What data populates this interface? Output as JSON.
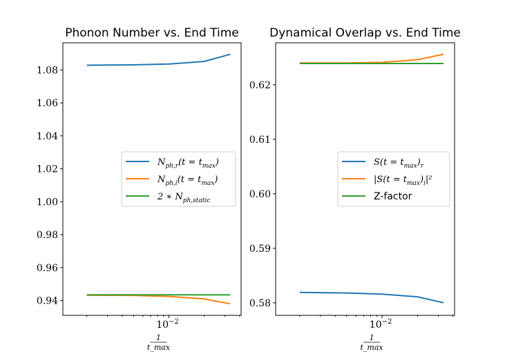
{
  "chart_data": [
    {
      "type": "line",
      "title": "Phonon Number vs. End Time",
      "xlabel": "1/t_max",
      "xlabel_num": "1",
      "xlabel_den": "t_max",
      "x_scale": "log",
      "xtick_label": "10^-2",
      "x": [
        0.002,
        0.005,
        0.01,
        0.02,
        0.0333
      ],
      "ylim": [
        0.931,
        1.0965
      ],
      "yticks": [
        "0.94",
        "0.96",
        "0.98",
        "1.00",
        "1.02",
        "1.04",
        "1.06",
        "1.08"
      ],
      "ytick_values": [
        0.94,
        0.96,
        0.98,
        1.0,
        1.02,
        1.04,
        1.06,
        1.08
      ],
      "legend_position": "center right",
      "series": [
        {
          "name": "N_{ph,r}(t = t_max)",
          "color": "#1f77b4",
          "values": [
            1.0829,
            1.0831,
            1.0836,
            1.0852,
            1.0895
          ]
        },
        {
          "name": "N_{ph,i}(t = t_max)",
          "color": "#ff7f0e",
          "values": [
            0.9432,
            0.9431,
            0.9425,
            0.941,
            0.938
          ]
        },
        {
          "name": "2 * N_{ph,static}",
          "color": "#2ca02c",
          "values": [
            0.9435,
            0.9435,
            0.9435,
            0.9435,
            0.9435
          ]
        }
      ],
      "legend": [
        {
          "main": "N",
          "sub": "ph,r",
          "rest": "(t = t",
          "sub2": "max",
          "end": ")"
        },
        {
          "main": "N",
          "sub": "ph,i",
          "rest": "(t = t",
          "sub2": "max",
          "end": ")"
        },
        {
          "main": "2 ∗ N",
          "sub": "ph,static",
          "rest": "",
          "sub2": "",
          "end": ""
        }
      ]
    },
    {
      "type": "line",
      "title": "Dynamical Overlap vs. End Time",
      "xlabel": "1/t_max",
      "xlabel_num": "1",
      "xlabel_den": "t_max",
      "x_scale": "log",
      "xtick_label": "10^-2",
      "x": [
        0.002,
        0.005,
        0.01,
        0.02,
        0.0333
      ],
      "ylim": [
        0.5777,
        0.6277
      ],
      "yticks": [
        "0.58",
        "0.59",
        "0.60",
        "0.61",
        "0.62"
      ],
      "ytick_values": [
        0.58,
        0.59,
        0.6,
        0.61,
        0.62
      ],
      "legend_position": "center right",
      "series": [
        {
          "name": "S(t = t_max)_r",
          "color": "#1f77b4",
          "values": [
            0.5819,
            0.5818,
            0.5816,
            0.5811,
            0.58
          ]
        },
        {
          "name": "|S(t = t_max)_i|^2",
          "color": "#ff7f0e",
          "values": [
            0.624,
            0.624,
            0.6241,
            0.6246,
            0.6256
          ]
        },
        {
          "name": "Z-factor",
          "color": "#2ca02c",
          "values": [
            0.6239,
            0.6239,
            0.6239,
            0.6239,
            0.6239
          ]
        }
      ],
      "legend": [
        {
          "main": "S(t = t",
          "sub": "max",
          "rest": ")",
          "sub2": "r",
          "end": ""
        },
        {
          "main": "|S(t = t",
          "sub": "max",
          "rest": ")",
          "sub2": "i",
          "end": "|²"
        },
        {
          "main": "Z-factor",
          "sub": "",
          "rest": "",
          "sub2": "",
          "end": ""
        }
      ]
    }
  ]
}
